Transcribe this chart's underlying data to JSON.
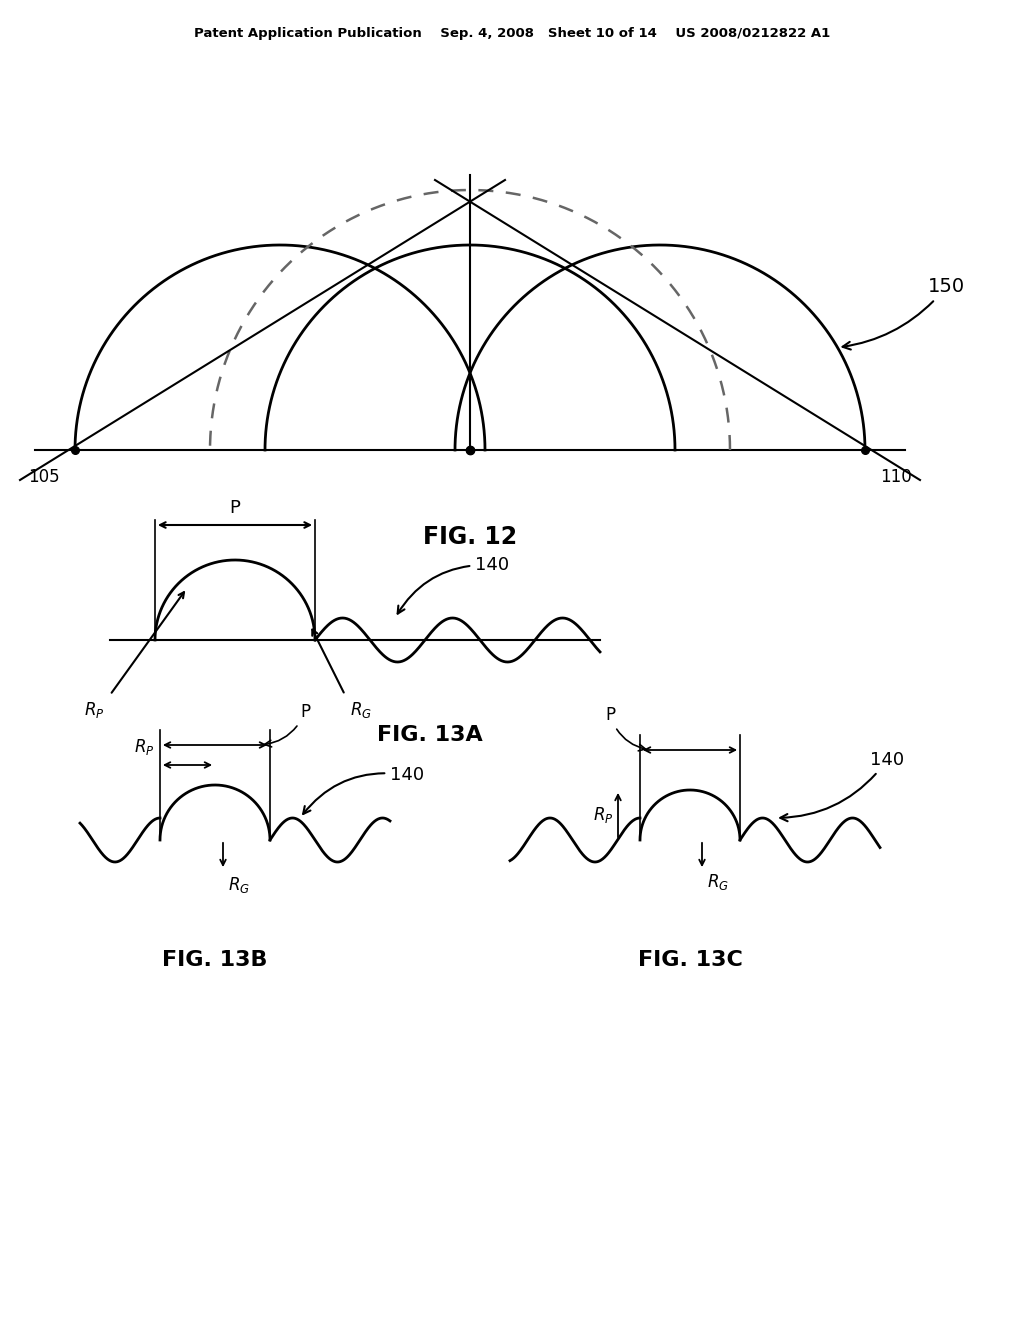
{
  "bg_color": "#ffffff",
  "lc": "#000000",
  "dc": "#666666",
  "header": "Patent Application Publication    Sep. 4, 2008   Sheet 10 of 14    US 2008/0212822 A1",
  "fig12_label": "FIG. 12",
  "fig13a_label": "FIG. 13A",
  "fig13b_label": "FIG. 13B",
  "fig13c_label": "FIG. 13C"
}
